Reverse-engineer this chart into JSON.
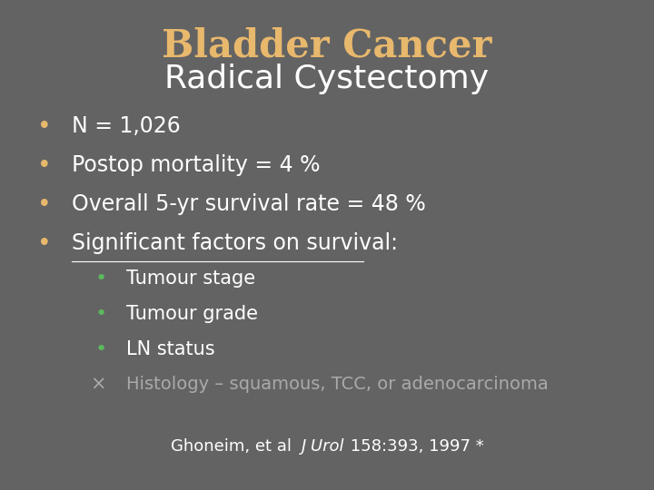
{
  "background_color": "#636363",
  "title1": "Bladder Cancer",
  "title1_color": "#E8B86D",
  "title2": "Radical Cystectomy",
  "title2_color": "#FFFFFF",
  "title1_fontsize": 30,
  "title2_fontsize": 26,
  "bullet_color": "#E8B86D",
  "sub_bullet_color": "#5CB85C",
  "text_color": "#FFFFFF",
  "dim_text_color": "#AAAAAA",
  "main_bullets": [
    "N = 1,026",
    "Postop mortality = 4 %",
    "Overall 5-yr survival rate = 48 %",
    "Significant factors on survival:"
  ],
  "sub_bullets": [
    "Tumour stage",
    "Tumour grade",
    "LN status"
  ],
  "x_marker": "×",
  "x_text": "Histology – squamous, TCC, or adenocarcinoma",
  "footer_normal1": "Ghoneim, et al  ",
  "footer_italic": "J Urol",
  "footer_normal2": " 158:393, 1997 *",
  "footer_color": "#FFFFFF",
  "footer_fontsize": 13,
  "main_bullet_fontsize": 17,
  "sub_bullet_fontsize": 15
}
